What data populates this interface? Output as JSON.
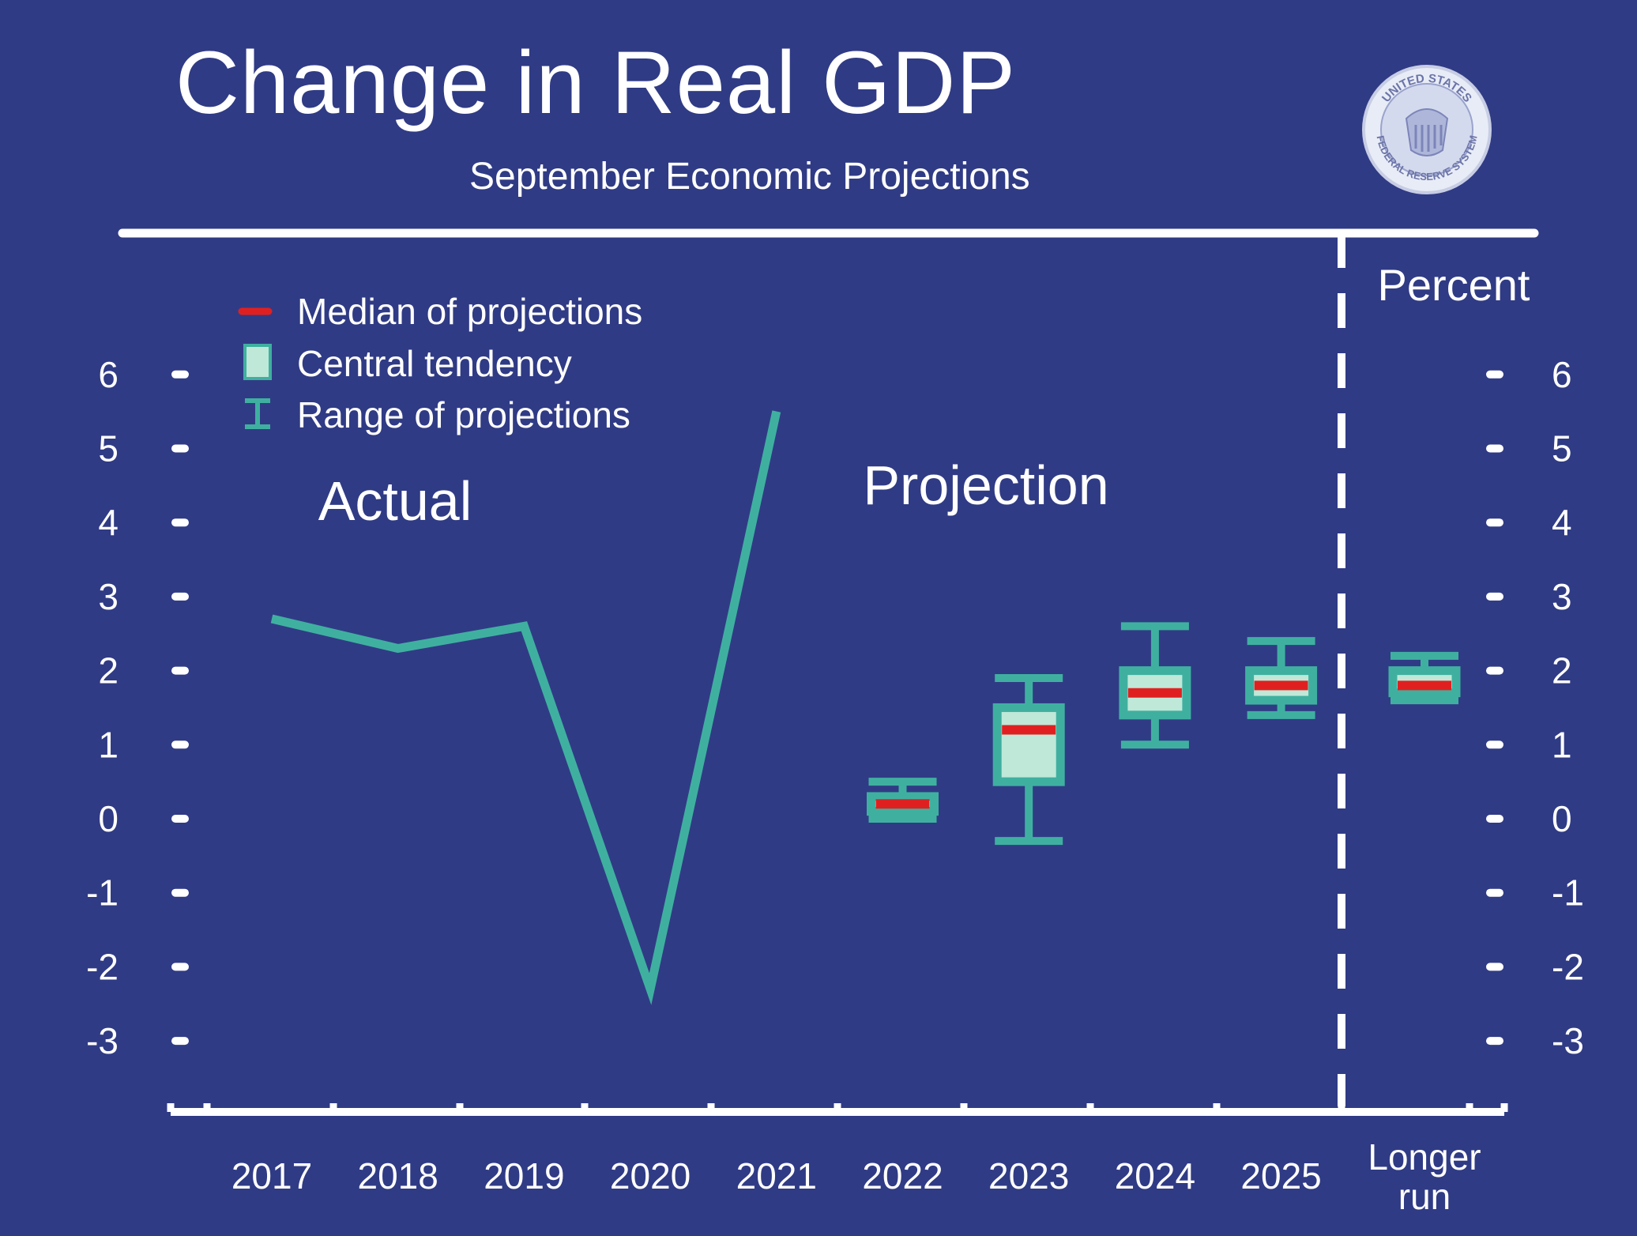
{
  "title": "Change in Real GDP",
  "subtitle": "September Economic Projections",
  "seal": {
    "top_text": "UNITED STATES",
    "bottom_text": "FEDERAL RESERVE SYSTEM"
  },
  "chart_data": {
    "type": "line",
    "unit_label": "Percent",
    "ylim": [
      -3.8,
      6.3
    ],
    "y_ticks": [
      "6",
      "5",
      "4",
      "3",
      "2",
      "1",
      "0",
      "-1",
      "-2",
      "-3"
    ],
    "categories": [
      "2017",
      "2018",
      "2019",
      "2020",
      "2021",
      "2022",
      "2023",
      "2024",
      "2025",
      "Longer run"
    ],
    "section_labels": {
      "actual": "Actual",
      "projection": "Projection"
    },
    "legend": {
      "median": "Median of projections",
      "central_tendency": "Central tendency",
      "range": "Range of projections"
    },
    "actual": {
      "x": [
        "2017",
        "2018",
        "2019",
        "2020",
        "2021"
      ],
      "values": [
        2.7,
        2.3,
        2.6,
        -2.3,
        5.5
      ]
    },
    "projections": [
      {
        "x": "2022",
        "range_low": 0.0,
        "range_high": 0.5,
        "central_low": 0.1,
        "central_high": 0.3,
        "median": 0.2
      },
      {
        "x": "2023",
        "range_low": -0.3,
        "range_high": 1.9,
        "central_low": 0.5,
        "central_high": 1.5,
        "median": 1.2
      },
      {
        "x": "2024",
        "range_low": 1.0,
        "range_high": 2.6,
        "central_low": 1.4,
        "central_high": 2.0,
        "median": 1.7
      },
      {
        "x": "2025",
        "range_low": 1.4,
        "range_high": 2.4,
        "central_low": 1.6,
        "central_high": 2.0,
        "median": 1.8
      },
      {
        "x": "Longer run",
        "range_low": 1.6,
        "range_high": 2.2,
        "central_low": 1.7,
        "central_high": 2.0,
        "median": 1.8
      }
    ],
    "grid": false,
    "legend_placement": "top-left",
    "colors": {
      "background": "#303b85",
      "line": "#3fb0a0",
      "box_fill": "#bfe8d8",
      "box_stroke": "#3fb0a0",
      "median": "#e02020",
      "axis": "#ffffff"
    }
  }
}
